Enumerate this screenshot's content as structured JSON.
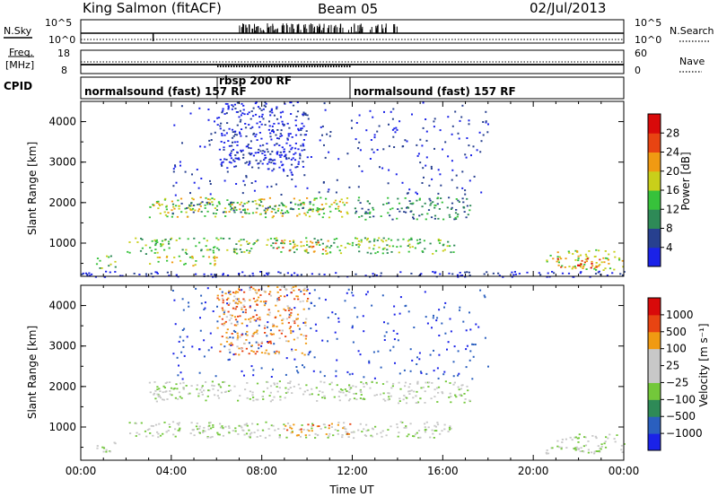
{
  "header": {
    "station": "King Salmon (fitACF)",
    "beam": "Beam 05",
    "date": "02/Jul/2013"
  },
  "top_panels": {
    "nsky_label": "N.Sky",
    "nsky_ticks": [
      "10^5",
      "10^0"
    ],
    "nsearch_label": "N.Search",
    "nsearch_ticks": [
      "10^5",
      "10^0"
    ],
    "freq_label_1": "Freq.",
    "freq_label_2": "[MHz]",
    "freq_ticks": [
      "18",
      "8"
    ],
    "nave_label": "Nave",
    "nave_ticks": [
      "60",
      "0"
    ],
    "cpid_label": "CPID",
    "cpid_segments": [
      {
        "label": "normalsound (fast) 157 RF",
        "start_hr": 0,
        "end_hr": 6.2
      },
      {
        "label": "rbsp 200 RF",
        "start_hr": 6.2,
        "end_hr": 12.0
      },
      {
        "label": "normalsound (fast) 157 RF",
        "start_hr": 12.0,
        "end_hr": 24
      }
    ]
  },
  "chart_data": [
    {
      "type": "heatmap",
      "panel": "power",
      "xlabel": "",
      "ylabel": "Slant Range [km]",
      "xlim_hours": [
        0,
        24
      ],
      "ylim_km": [
        180,
        4500
      ],
      "yticks": [
        "1000",
        "2000",
        "3000",
        "4000"
      ],
      "colorbar_label": "Power [dB]",
      "colorbar_ticks": [
        "4",
        "8",
        "12",
        "16",
        "20",
        "24",
        "28"
      ],
      "colorbar_colors": [
        "#1a22e8",
        "#27408f",
        "#2e8a57",
        "#37c23b",
        "#c9cf1a",
        "#f09a12",
        "#e84412",
        "#d90a0a"
      ],
      "regions": [
        {
          "t0": 3.0,
          "t1": 12.0,
          "r0": 1650,
          "r1": 2150,
          "level": 4
        },
        {
          "t0": 4.0,
          "t1": 11.0,
          "r0": 1750,
          "r1": 2050,
          "level": 2
        },
        {
          "t0": 12.0,
          "t1": 17.2,
          "r0": 1600,
          "r1": 2150,
          "level": 2
        },
        {
          "t0": 2.0,
          "t1": 16.5,
          "r0": 750,
          "r1": 1150,
          "level": 3
        },
        {
          "t0": 8.5,
          "t1": 11.0,
          "r0": 800,
          "r1": 1100,
          "level": 5
        },
        {
          "t0": 3.0,
          "t1": 6.0,
          "r0": 450,
          "r1": 700,
          "level": 4
        },
        {
          "t0": 20.5,
          "t1": 24.0,
          "r0": 350,
          "r1": 850,
          "level": 4
        },
        {
          "t0": 21.0,
          "t1": 23.0,
          "r0": 400,
          "r1": 650,
          "level": 6
        },
        {
          "t0": 6.0,
          "t1": 10.0,
          "r0": 2800,
          "r1": 4500,
          "level": 0
        },
        {
          "t0": 0.5,
          "t1": 1.5,
          "r0": 400,
          "r1": 700,
          "level": 3
        },
        {
          "t0": 0.0,
          "t1": 24.0,
          "r0": 180,
          "r1": 320,
          "level": 0
        }
      ]
    },
    {
      "type": "heatmap",
      "panel": "velocity",
      "xlabel": "Time UT",
      "ylabel": "Slant Range [km]",
      "xlim_hours": [
        0,
        24
      ],
      "ylim_km": [
        180,
        4500
      ],
      "xticks": [
        "00:00",
        "04:00",
        "08:00",
        "12:00",
        "16:00",
        "20:00",
        "00:00"
      ],
      "yticks": [
        "1000",
        "2000",
        "3000",
        "4000"
      ],
      "colorbar_label": "Velocity [m s⁻¹]",
      "colorbar_ticks": [
        "1000",
        "500",
        "100",
        "25",
        "−25",
        "−100",
        "−500",
        "−1000"
      ],
      "colorbar_colors": [
        "#1a22e8",
        "#2a5fbf",
        "#2e8a57",
        "#73c83a",
        "#c8c8c8",
        "#c8c8c8",
        "#f09a12",
        "#e84412",
        "#d90a0a"
      ],
      "regions": [
        {
          "t0": 3.0,
          "t1": 12.0,
          "r0": 1650,
          "r1": 2150,
          "level": 4
        },
        {
          "t0": 12.0,
          "t1": 17.2,
          "r0": 1600,
          "r1": 2150,
          "level": 4
        },
        {
          "t0": 2.0,
          "t1": 16.5,
          "r0": 750,
          "r1": 1150,
          "level": 4
        },
        {
          "t0": 9.0,
          "t1": 12.0,
          "r0": 800,
          "r1": 1100,
          "level": 6
        },
        {
          "t0": 20.5,
          "t1": 24.0,
          "r0": 350,
          "r1": 850,
          "level": 4
        },
        {
          "t0": 6.0,
          "t1": 10.0,
          "r0": 2800,
          "r1": 4500,
          "level": 6
        },
        {
          "t0": 0.5,
          "t1": 1.5,
          "r0": 400,
          "r1": 700,
          "level": 4
        }
      ]
    }
  ]
}
